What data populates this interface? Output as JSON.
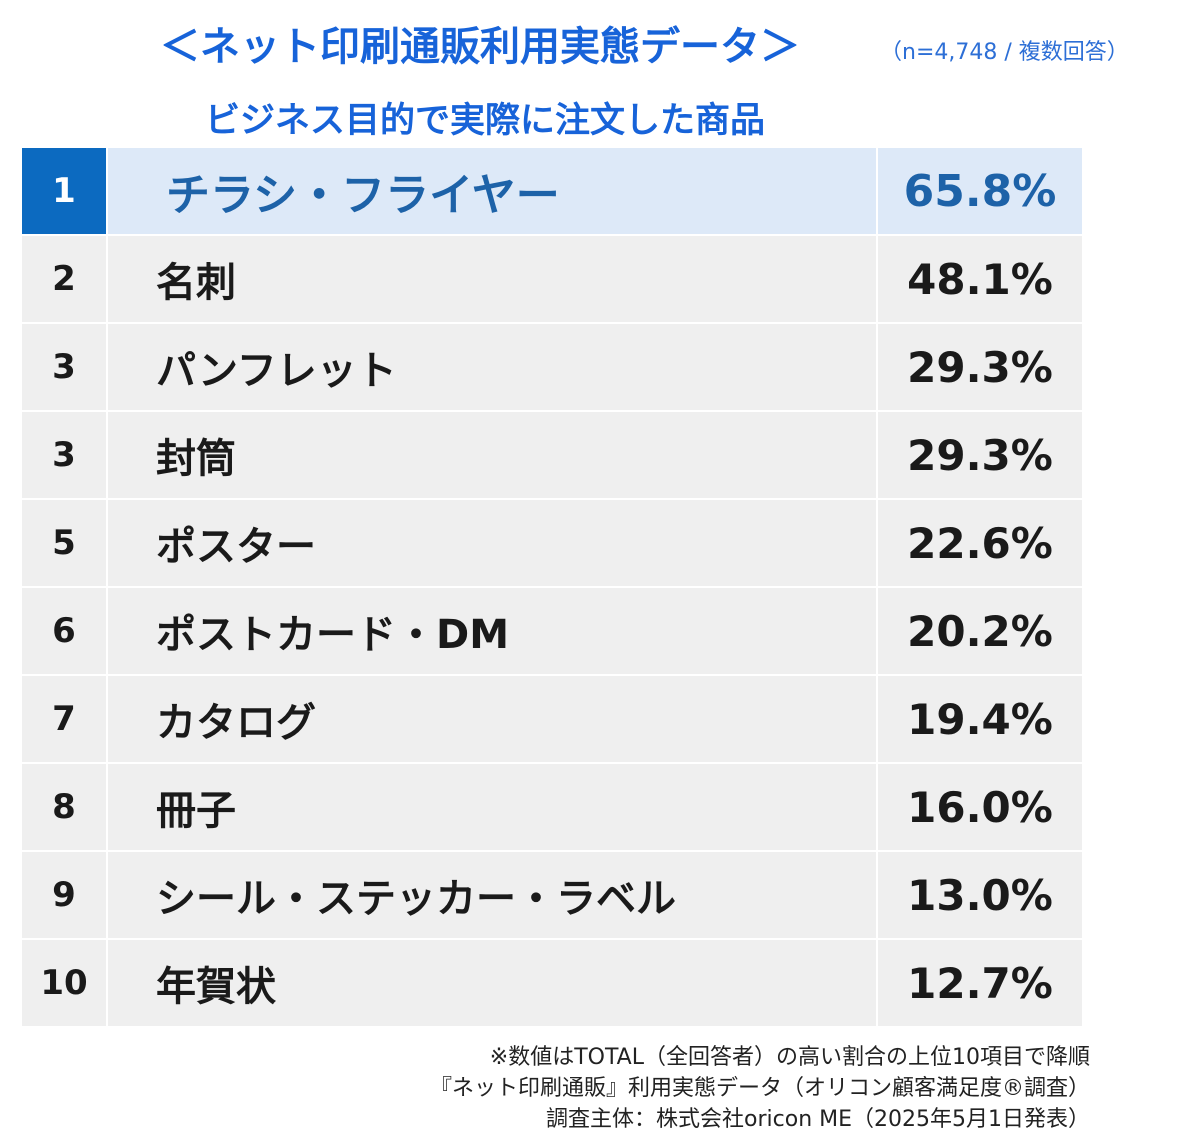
{
  "header": {
    "title": "＜ネット印刷通販利用実態データ＞",
    "sample": "（n=4,748 / 複数回答）",
    "subtitle": "ビジネス目的で実際に注文した商品"
  },
  "colors": {
    "accent": "#1763d9",
    "top_rank_bg": "#0c6ac0",
    "top_row_bg": "#dde9f8",
    "row_bg": "#efefef"
  },
  "chart_data": {
    "type": "table",
    "rows": [
      {
        "rank": "1",
        "item": "チラシ・フライヤー",
        "percent": "65.8%",
        "value": 65.8
      },
      {
        "rank": "2",
        "item": "名刺",
        "percent": "48.1%",
        "value": 48.1
      },
      {
        "rank": "3",
        "item": "パンフレット",
        "percent": "29.3%",
        "value": 29.3
      },
      {
        "rank": "3",
        "item": "封筒",
        "percent": "29.3%",
        "value": 29.3
      },
      {
        "rank": "5",
        "item": "ポスター",
        "percent": "22.6%",
        "value": 22.6
      },
      {
        "rank": "6",
        "item": "ポストカード・DM",
        "percent": "20.2%",
        "value": 20.2
      },
      {
        "rank": "7",
        "item": "カタログ",
        "percent": "19.4%",
        "value": 19.4
      },
      {
        "rank": "8",
        "item": "冊子",
        "percent": "16.0%",
        "value": 16.0
      },
      {
        "rank": "9",
        "item": "シール・ステッカー・ラベル",
        "percent": "13.0%",
        "value": 13.0
      },
      {
        "rank": "10",
        "item": "年賀状",
        "percent": "12.7%",
        "value": 12.7
      }
    ]
  },
  "notes": [
    "※数値はTOTAL（全回答者）の高い割合の上位10項目で降順",
    "『ネット印刷通販』利用実態データ（オリコン顧客満足度®調査）",
    "調査主体：株式会社oricon ME（2025年5月1日発表）"
  ]
}
